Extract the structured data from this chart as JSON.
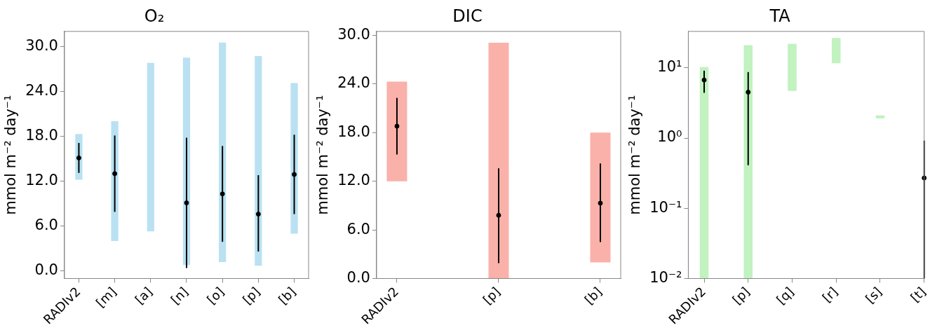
{
  "chart_data": [
    {
      "type": "bar",
      "title": "O₂",
      "ylabel": "mmol m⁻² day⁻¹",
      "categories": [
        "RADIv2",
        "[m]",
        "[a]",
        "[n]",
        "[o]",
        "[p]",
        "[b]"
      ],
      "marker": "circle",
      "ylim": [
        -1,
        32
      ],
      "yticks": [
        {
          "value": 0,
          "label": "0.0"
        },
        {
          "value": 6,
          "label": "6.0"
        },
        {
          "value": 12,
          "label": "12.0"
        },
        {
          "value": 18,
          "label": "18.0"
        },
        {
          "value": 24,
          "label": "24.0"
        },
        {
          "value": 30,
          "label": "30.0"
        }
      ],
      "series": [
        {
          "type": "bar",
          "color": "#b9e1f2",
          "base": [
            12.2,
            4.0,
            5.3,
            0.8,
            1.2,
            0.7,
            5.0
          ],
          "values": [
            6.1,
            16.0,
            22.5,
            27.7,
            29.3,
            28.0,
            20.1
          ]
        },
        {
          "type": "scatter",
          "color": "#000000",
          "x": [
            "RADIv2",
            "[m]",
            "[a]",
            "[n]",
            "[o]",
            "[p]",
            "[b]"
          ],
          "values": [
            15.1,
            13.0,
            null,
            9.1,
            10.3,
            7.6,
            12.9
          ],
          "errors": [
            [
              13.1,
              17.1
            ],
            [
              7.9,
              18.1
            ],
            null,
            [
              0.4,
              17.8
            ],
            [
              3.9,
              16.7
            ],
            [
              2.6,
              12.8
            ],
            [
              7.6,
              18.2
            ]
          ]
        }
      ]
    },
    {
      "type": "bar",
      "title": "DIC",
      "ylabel": "mmol m⁻² day⁻¹",
      "categories": [
        "RADIv2",
        "[p]",
        "[b]"
      ],
      "marker": "circle",
      "ylim": [
        0,
        30.5
      ],
      "yticks": [
        {
          "value": 0,
          "label": "0.0"
        },
        {
          "value": 6,
          "label": "6.0"
        },
        {
          "value": 12,
          "label": "12.0"
        },
        {
          "value": 18,
          "label": "18.0"
        },
        {
          "value": 24,
          "label": "24.0"
        },
        {
          "value": 30,
          "label": "30.0"
        }
      ],
      "series": [
        {
          "type": "bar",
          "color": "#fab1aa",
          "base": [
            12.0,
            0,
            2.0
          ],
          "values": [
            12.3,
            29.1,
            16.0
          ]
        },
        {
          "type": "scatter",
          "color": "#000000",
          "x": [
            "RADIv2",
            "[p]",
            "[b]"
          ],
          "values": [
            18.8,
            7.8,
            9.3
          ],
          "errors": [
            [
              15.3,
              22.3
            ],
            [
              1.9,
              13.6
            ],
            [
              4.5,
              14.2
            ]
          ]
        }
      ]
    },
    {
      "type": "bar",
      "title": "TA",
      "ylabel": "mmol m⁻² day⁻¹",
      "categories": [
        "RADIv2",
        "[p]",
        "[q]",
        "[r]",
        "[s]",
        "[t]"
      ],
      "marker": "circle",
      "log": "y",
      "ylim": [
        0.01,
        33
      ],
      "yticks": [
        {
          "value": 0.01,
          "label": "10⁻²"
        },
        {
          "value": 0.1,
          "label": "10⁻¹"
        },
        {
          "value": 1,
          "label": "10⁰"
        },
        {
          "value": 10,
          "label": "10¹"
        }
      ],
      "series": [
        {
          "type": "bar",
          "color": "#c1f2bf",
          "base": [
            0.01,
            0.01,
            4.7,
            11.6,
            1.9,
            null
          ],
          "values": [
            10.2,
            21,
            17.3,
            14.9,
            0.2,
            null
          ]
        },
        {
          "type": "scatter",
          "color": "#000000",
          "x": [
            "RADIv2",
            "[p]",
            "[q]",
            "[r]",
            "[s]",
            "[t]"
          ],
          "values": [
            6.7,
            4.5,
            null,
            null,
            null,
            0.27
          ],
          "errors": [
            [
              4.4,
              9.1
            ],
            [
              0.41,
              8.7
            ],
            null,
            null,
            null,
            [
              0.01,
              0.92
            ]
          ]
        }
      ]
    }
  ]
}
